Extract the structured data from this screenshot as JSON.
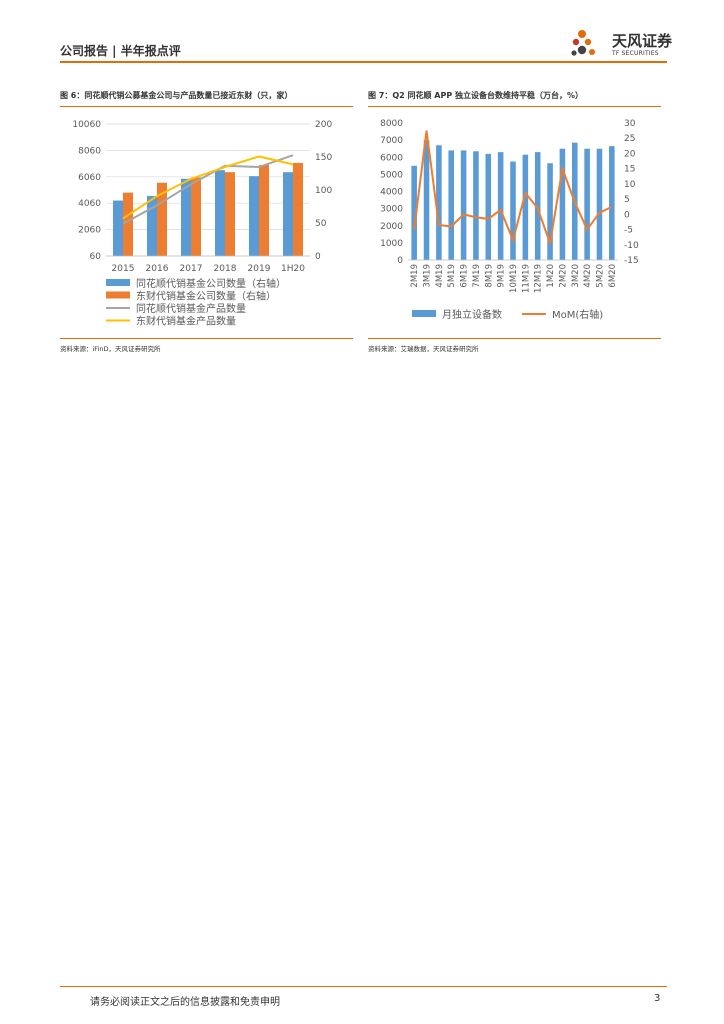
{
  "header": {
    "breadcrumb": "公司报告 | 半年报点评"
  },
  "brand": {
    "name": "天风证券",
    "name_en": "TF SECURITIES"
  },
  "figure6": {
    "title": "图 6：同花顺代销公募基金公司与产品数量已接近东财（只，家）",
    "source": "资料来源：iFinD，天风证券研究所"
  },
  "figure7": {
    "title": "图 7：Q2 同花顺 APP 独立设备台数维持平稳（万台，%）",
    "source": "资料来源：艾瑞数据，天风证券研究所"
  },
  "footer": {
    "disclaimer": "请务必阅读正文之后的信息披露和免责申明",
    "page": "3"
  },
  "colors": {
    "accent": "#e36c0a",
    "blue": "#5b9bd5",
    "orange": "#ed7d31",
    "gray": "#a5a5a5",
    "yellow": "#ffc000"
  },
  "chart_data": [
    {
      "type": "bar",
      "categories": [
        "2015",
        "2016",
        "2017",
        "2018",
        "2019",
        "1H20"
      ],
      "y_left": {
        "ticks": [
          "60",
          "2060",
          "4060",
          "6060",
          "8060",
          "10060"
        ],
        "ylim": [
          60,
          10060
        ]
      },
      "y_right": {
        "ticks": [
          "0",
          "50",
          "100",
          "150",
          "200"
        ],
        "ylim": [
          0,
          200
        ]
      },
      "series": [
        {
          "name": "同花顺代销基金公司数量（右轴）",
          "kind": "bar",
          "axis": "right",
          "color": "#5b9bd5",
          "values": [
            84,
            91,
            117,
            130,
            121,
            127
          ]
        },
        {
          "name": "东财代销基金公司数量（右轴）",
          "kind": "bar",
          "axis": "right",
          "color": "#ed7d31",
          "values": [
            96,
            111,
            119,
            127,
            138,
            141
          ]
        },
        {
          "name": "同花顺代销基金产品数量",
          "kind": "line",
          "axis": "left",
          "color": "#a5a5a5",
          "values": [
            2500,
            3900,
            5500,
            6900,
            6800,
            7700
          ]
        },
        {
          "name": "东财代销基金产品数量",
          "kind": "line",
          "axis": "left",
          "color": "#ffc000",
          "values": [
            2900,
            4600,
            5900,
            6800,
            7600,
            7000
          ]
        }
      ]
    },
    {
      "type": "bar",
      "categories": [
        "2M19",
        "3M19",
        "4M19",
        "5M19",
        "6M19",
        "7M19",
        "8M19",
        "9M19",
        "10M19",
        "11M19",
        "12M19",
        "1M20",
        "2M20",
        "3M20",
        "4M20",
        "5M20",
        "6M20"
      ],
      "y_left": {
        "ticks": [
          "0",
          "1000",
          "2000",
          "3000",
          "4000",
          "5000",
          "6000",
          "7000",
          "8000"
        ],
        "ylim": [
          0,
          8000
        ]
      },
      "y_right": {
        "ticks": [
          "-15",
          "-10",
          "-5",
          "0",
          "5",
          "10",
          "15",
          "20",
          "25",
          "30"
        ],
        "ylim": [
          -15,
          30
        ]
      },
      "series": [
        {
          "name": "月独立设备数",
          "kind": "bar",
          "axis": "left",
          "color": "#5b9bd5",
          "values": [
            5500,
            7000,
            6700,
            6400,
            6400,
            6350,
            6200,
            6300,
            5750,
            6150,
            6300,
            5650,
            6500,
            6850,
            6500,
            6500,
            6650
          ]
        },
        {
          "name": "MoM(右轴)",
          "kind": "line",
          "axis": "right",
          "color": "#ed7d31",
          "values": [
            -5,
            27.5,
            -3.5,
            -4,
            0,
            -1,
            -1.5,
            1.5,
            -8.5,
            7,
            2,
            -9.5,
            15,
            4,
            -5,
            0.5,
            2.5
          ]
        }
      ]
    }
  ]
}
